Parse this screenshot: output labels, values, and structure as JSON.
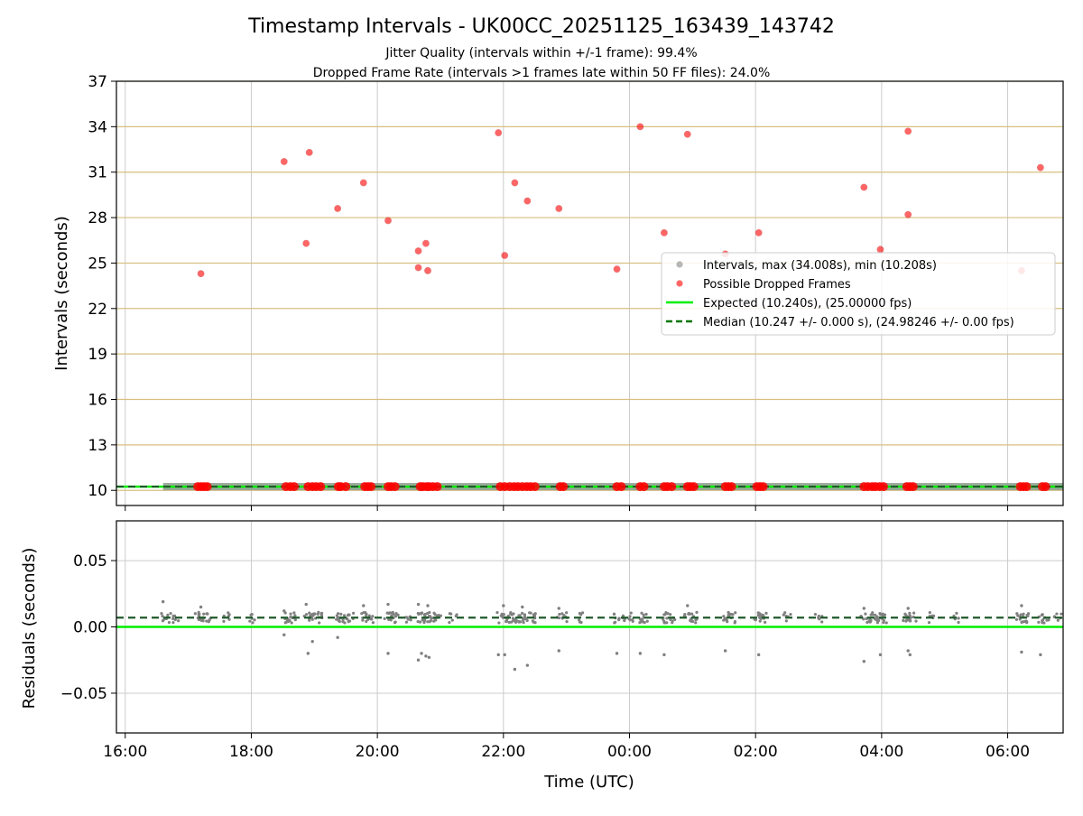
{
  "chart_data": {
    "title": "Timestamp Intervals - UK00CC_20251125_163439_143742",
    "subtitle_lines": [
      "Jitter Quality (intervals within +/-1 frame): 99.4%",
      "Dropped Frame Rate (intervals >1 frames late within 50 FF files): 24.0%"
    ],
    "xlabel": "Time (UTC)",
    "x_ticks": [
      "16:00",
      "18:00",
      "20:00",
      "22:00",
      "00:00",
      "02:00",
      "04:00",
      "06:00"
    ],
    "x_tick_hours": [
      16,
      18,
      20,
      22,
      24,
      26,
      28,
      30
    ],
    "x_range_hours": [
      15.86,
      30.88
    ],
    "top_panel": {
      "type": "scatter",
      "ylabel": "Intervals (seconds)",
      "ylim": [
        9.0,
        37.0
      ],
      "y_ticks": [
        10,
        13,
        16,
        19,
        22,
        25,
        28,
        31,
        34,
        37
      ],
      "grid": "horizontal lines at y ticks; vertical lines at x ticks",
      "expected": 10.24,
      "median": 10.247,
      "normal_interval_x_range_hours": [
        16.6,
        30.88
      ],
      "dropped_points": [
        [
          17.2,
          24.3
        ],
        [
          18.52,
          31.7
        ],
        [
          18.87,
          26.3
        ],
        [
          18.92,
          32.3
        ],
        [
          19.37,
          28.6
        ],
        [
          19.78,
          30.3
        ],
        [
          20.17,
          27.8
        ],
        [
          20.65,
          25.8
        ],
        [
          20.65,
          24.7
        ],
        [
          20.77,
          26.3
        ],
        [
          20.8,
          24.5
        ],
        [
          21.92,
          33.6
        ],
        [
          22.02,
          25.5
        ],
        [
          22.18,
          30.3
        ],
        [
          22.38,
          29.1
        ],
        [
          22.88,
          28.6
        ],
        [
          23.8,
          24.6
        ],
        [
          24.17,
          34.0
        ],
        [
          24.55,
          27.0
        ],
        [
          24.92,
          33.5
        ],
        [
          25.52,
          25.6
        ],
        [
          26.05,
          27.0
        ],
        [
          27.72,
          30.0
        ],
        [
          27.98,
          25.9
        ],
        [
          28.42,
          33.7
        ],
        [
          28.42,
          28.2
        ],
        [
          30.22,
          24.5
        ],
        [
          30.52,
          31.3
        ]
      ],
      "dropped_baseline_x_hours": [
        17.15,
        17.2,
        17.25,
        17.3,
        18.55,
        18.62,
        18.68,
        18.9,
        18.97,
        19.03,
        19.1,
        19.38,
        19.42,
        19.5,
        19.8,
        19.85,
        19.9,
        20.17,
        20.22,
        20.28,
        20.68,
        20.72,
        20.78,
        20.82,
        20.88,
        20.95,
        21.95,
        22.02,
        22.1,
        22.17,
        22.23,
        22.3,
        22.37,
        22.43,
        22.5,
        22.9,
        22.95,
        23.8,
        23.87,
        24.17,
        24.23,
        24.55,
        24.6,
        24.67,
        24.92,
        24.97,
        25.02,
        25.52,
        25.57,
        25.62,
        26.02,
        26.07,
        26.12,
        27.72,
        27.78,
        27.85,
        27.9,
        27.97,
        28.03,
        28.4,
        28.45,
        28.5,
        30.2,
        30.25,
        30.3,
        30.55,
        30.6
      ],
      "legend": {
        "placement": "center-right",
        "entries": [
          {
            "label": "Intervals, max (34.008s), min (10.208s)",
            "marker": "gray-dot"
          },
          {
            "label": "Possible Dropped Frames",
            "marker": "red-dot"
          },
          {
            "label": "Expected (10.240s), (25.00000 fps)",
            "marker": "green-line"
          },
          {
            "label": "Median (10.247 +/- 0.000 s), (24.98246 +/- 0.00 fps)",
            "marker": "darkgreen-dashed"
          }
        ]
      }
    },
    "bottom_panel": {
      "type": "scatter",
      "ylabel": "Residuals (seconds)",
      "ylim": [
        -0.08,
        0.08
      ],
      "y_ticks": [
        0.05,
        0.0,
        -0.05
      ],
      "y_tick_labels": [
        "0.05",
        "0.00",
        "−0.05"
      ],
      "expected_residual": 0.0,
      "median_residual": 0.007,
      "residual_outliers": [
        [
          16.6,
          0.019
        ],
        [
          17.2,
          0.015
        ],
        [
          18.52,
          -0.006
        ],
        [
          18.52,
          0.012
        ],
        [
          18.87,
          0.017
        ],
        [
          18.9,
          -0.02
        ],
        [
          18.97,
          -0.011
        ],
        [
          19.37,
          -0.008
        ],
        [
          19.78,
          0.016
        ],
        [
          20.17,
          -0.02
        ],
        [
          20.17,
          0.017
        ],
        [
          20.65,
          -0.025
        ],
        [
          20.7,
          -0.02
        ],
        [
          20.77,
          -0.022
        ],
        [
          20.82,
          -0.023
        ],
        [
          20.65,
          0.017
        ],
        [
          20.8,
          0.016
        ],
        [
          21.92,
          -0.021
        ],
        [
          22.02,
          -0.021
        ],
        [
          22.18,
          -0.032
        ],
        [
          22.38,
          -0.029
        ],
        [
          22.88,
          -0.018
        ],
        [
          23.8,
          -0.02
        ],
        [
          24.17,
          -0.02
        ],
        [
          24.55,
          -0.021
        ],
        [
          25.52,
          -0.018
        ],
        [
          26.05,
          -0.021
        ],
        [
          27.72,
          -0.026
        ],
        [
          27.98,
          -0.021
        ],
        [
          28.42,
          -0.018
        ],
        [
          28.45,
          -0.021
        ],
        [
          30.22,
          -0.019
        ],
        [
          30.52,
          -0.021
        ],
        [
          22.0,
          0.016
        ],
        [
          22.3,
          0.015
        ],
        [
          22.88,
          0.014
        ],
        [
          24.92,
          0.016
        ],
        [
          27.72,
          0.014
        ],
        [
          28.42,
          0.014
        ],
        [
          30.22,
          0.016
        ]
      ]
    },
    "colors": {
      "dropped": "#ff0000",
      "normal": "#808080",
      "expected": "#00ee00",
      "median": "#007700",
      "hgrid_top": "#d8bf80",
      "grid": "#cccccc"
    }
  }
}
